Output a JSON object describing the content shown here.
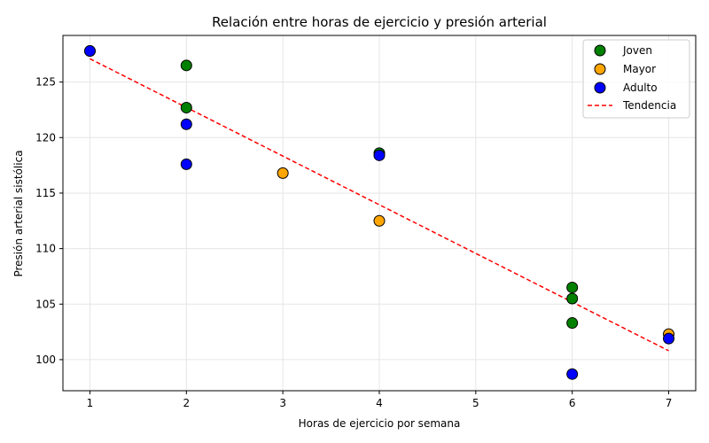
{
  "chart_data": {
    "type": "scatter",
    "title": "Relación entre horas de ejercicio y presión arterial",
    "xlabel": "Horas de ejercicio por semana",
    "ylabel": "Presión arterial sistólica",
    "xlim": [
      0.72,
      7.28
    ],
    "ylim": [
      97.2,
      129.2
    ],
    "xticks": [
      1,
      2,
      3,
      4,
      5,
      6,
      7
    ],
    "yticks": [
      100,
      105,
      110,
      115,
      120,
      125
    ],
    "grid": true,
    "legend_position": "top-right",
    "series": [
      {
        "name": "Joven",
        "color": "#008000",
        "points": [
          [
            1,
            127.8
          ],
          [
            2,
            126.5
          ],
          [
            2,
            122.7
          ],
          [
            4,
            118.6
          ],
          [
            6,
            106.5
          ],
          [
            6,
            105.5
          ],
          [
            6,
            103.3
          ]
        ]
      },
      {
        "name": "Mayor",
        "color": "#ffa500",
        "points": [
          [
            3,
            116.8
          ],
          [
            4,
            112.5
          ],
          [
            7,
            102.3
          ]
        ]
      },
      {
        "name": "Adulto",
        "color": "#0000ff",
        "points": [
          [
            1,
            127.8
          ],
          [
            2,
            121.2
          ],
          [
            2,
            117.6
          ],
          [
            4,
            118.4
          ],
          [
            6,
            98.7
          ],
          [
            7,
            101.9
          ]
        ]
      }
    ],
    "trend": {
      "name": "Tendencia",
      "color": "#ff0000",
      "style": "dashed",
      "points": [
        [
          1,
          127.1
        ],
        [
          7,
          100.8
        ]
      ]
    }
  }
}
